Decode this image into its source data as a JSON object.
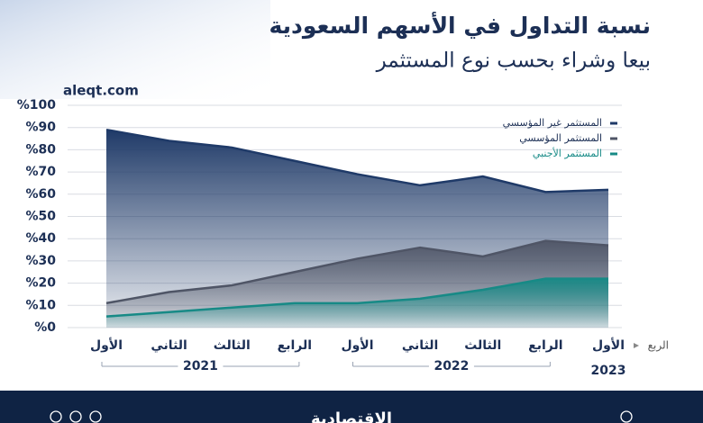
{
  "chart_data": {
    "type": "area",
    "title": "نسبة التداول في الأسهم السعودية",
    "subtitle": "بيعا وشراء بحسب نوع المستثمر",
    "source": "aleqt.com",
    "x_axis_label": "الربع",
    "footer": "الاقتصادية",
    "categories": [
      "الأول",
      "الثاني",
      "الثالث",
      "الرابع",
      "الأول",
      "الثاني",
      "الثالث",
      "الرابع",
      "الأول"
    ],
    "category_years": [
      "2021",
      "2021",
      "2021",
      "2021",
      "2022",
      "2022",
      "2022",
      "2022",
      "2023"
    ],
    "series": [
      {
        "name": "المستثمر غير المؤسسي",
        "color": "#1f3a68",
        "values": [
          89,
          84,
          81,
          75,
          69,
          64,
          68,
          61,
          62
        ]
      },
      {
        "name": "المستثمر المؤسسي",
        "color": "#4f5566",
        "values": [
          11,
          16,
          19,
          25,
          31,
          36,
          32,
          39,
          37
        ]
      },
      {
        "name": "المستثمر الأجنبي",
        "color": "#178a86",
        "values": [
          5,
          7,
          9,
          11,
          11,
          13,
          17,
          22,
          22
        ]
      }
    ],
    "ylim": [
      0,
      100
    ],
    "yticks": [
      {
        "value": 0,
        "label": "%0"
      },
      {
        "value": 10,
        "label": "%10"
      },
      {
        "value": 20,
        "label": "%20"
      },
      {
        "value": 30,
        "label": "%30"
      },
      {
        "value": 40,
        "label": "%40"
      },
      {
        "value": 50,
        "label": "%50"
      },
      {
        "value": 60,
        "label": "%60"
      },
      {
        "value": 70,
        "label": "%70"
      },
      {
        "value": 80,
        "label": "%80"
      },
      {
        "value": 90,
        "label": "%90"
      },
      {
        "value": 100,
        "label": "%100"
      }
    ],
    "grid": true
  }
}
